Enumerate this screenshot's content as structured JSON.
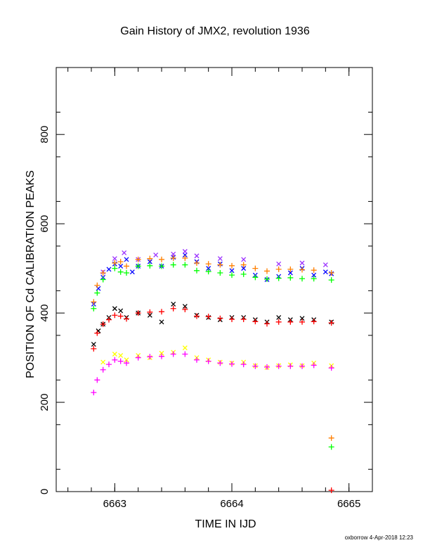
{
  "chart_data": {
    "type": "scatter",
    "title": "Gain History of JMX2, revolution 1936",
    "xlabel": "TIME IN IJD",
    "ylabel": "POSITION OF Cd CALIBRATION PEAKS",
    "xlim": [
      6662.5,
      6665.2
    ],
    "ylim": [
      0,
      950
    ],
    "x_ticks": [
      6663,
      6664,
      6665
    ],
    "x_tick_labels": [
      "6663",
      "6664",
      "6665"
    ],
    "y_ticks": [
      0,
      200,
      400,
      600,
      800
    ],
    "y_tick_labels": [
      "0",
      "200",
      "400",
      "600",
      "800"
    ],
    "grid": false,
    "series": [
      {
        "marker": "x",
        "color": "#0000ff",
        "x": [
          6662.82,
          6662.86,
          6662.9,
          6662.95,
          6663.0,
          6663.05,
          6663.1,
          6663.15,
          6663.2,
          6663.3,
          6663.4,
          6663.5,
          6663.6,
          6663.7,
          6663.8,
          6663.9,
          6664.0,
          6664.1,
          6664.2,
          6664.3,
          6664.4,
          6664.5,
          6664.6,
          6664.7,
          6664.8,
          6664.85
        ],
        "y": [
          420,
          455,
          480,
          498,
          510,
          505,
          520,
          492,
          505,
          515,
          505,
          525,
          530,
          515,
          500,
          510,
          495,
          500,
          485,
          475,
          482,
          490,
          500,
          485,
          492,
          488
        ]
      },
      {
        "marker": "x",
        "color": "#9b30ff",
        "x": [
          6662.9,
          6663.0,
          6663.08,
          6663.2,
          6663.35,
          6663.5,
          6663.6,
          6663.7,
          6663.9,
          6664.1,
          6664.4,
          6664.6,
          6664.8
        ],
        "y": [
          492,
          522,
          535,
          520,
          530,
          532,
          538,
          528,
          522,
          520,
          510,
          512,
          508
        ]
      },
      {
        "marker": "+",
        "color": "#ff7f00",
        "x": [
          6662.82,
          6662.85,
          6662.9,
          6663.0,
          6663.05,
          6663.1,
          6663.2,
          6663.3,
          6663.4,
          6663.5,
          6663.6,
          6663.7,
          6663.8,
          6663.9,
          6664.0,
          6664.1,
          6664.2,
          6664.3,
          6664.4,
          6664.5,
          6664.6,
          6664.7,
          6664.85
        ],
        "y": [
          425,
          462,
          490,
          512,
          515,
          505,
          520,
          522,
          520,
          523,
          523,
          512,
          510,
          508,
          506,
          508,
          500,
          494,
          498,
          498,
          497,
          496,
          490
        ]
      },
      {
        "marker": "+",
        "color": "#00ff00",
        "x": [
          6662.82,
          6662.85,
          6662.9,
          6663.0,
          6663.05,
          6663.1,
          6663.2,
          6663.3,
          6663.4,
          6663.5,
          6663.6,
          6663.7,
          6663.8,
          6663.9,
          6664.0,
          6664.1,
          6664.2,
          6664.3,
          6664.4,
          6664.5,
          6664.6,
          6664.7,
          6664.85
        ],
        "y": [
          410,
          445,
          475,
          500,
          492,
          490,
          505,
          506,
          505,
          508,
          508,
          495,
          493,
          490,
          485,
          487,
          480,
          476,
          478,
          479,
          477,
          477,
          474
        ]
      },
      {
        "marker": "x",
        "color": "#000000",
        "x": [
          6662.82,
          6662.86,
          6662.9,
          6662.95,
          6663.0,
          6663.05,
          6663.1,
          6663.2,
          6663.3,
          6663.4,
          6663.5,
          6663.6,
          6663.7,
          6663.8,
          6663.9,
          6664.0,
          6664.1,
          6664.2,
          6664.3,
          6664.4,
          6664.5,
          6664.6,
          6664.7,
          6664.85
        ],
        "y": [
          330,
          360,
          375,
          390,
          410,
          405,
          390,
          400,
          395,
          380,
          420,
          415,
          395,
          390,
          385,
          390,
          390,
          385,
          380,
          390,
          385,
          388,
          385,
          380
        ]
      },
      {
        "marker": "+",
        "color": "#ff0000",
        "x": [
          6662.82,
          6662.85,
          6662.9,
          6662.95,
          6663.0,
          6663.05,
          6663.1,
          6663.2,
          6663.3,
          6663.4,
          6663.5,
          6663.6,
          6663.7,
          6663.8,
          6663.9,
          6664.0,
          6664.1,
          6664.2,
          6664.3,
          6664.4,
          6664.5,
          6664.6,
          6664.7,
          6664.85
        ],
        "y": [
          320,
          355,
          375,
          385,
          395,
          393,
          387,
          400,
          402,
          403,
          410,
          408,
          393,
          392,
          388,
          386,
          386,
          381,
          376,
          380,
          380,
          380,
          381,
          378
        ]
      },
      {
        "marker": "x",
        "color": "#ffff00",
        "x": [
          6662.9,
          6663.0,
          6663.05,
          6663.1,
          6663.2,
          6663.3,
          6663.4,
          6663.5,
          6663.6,
          6663.7,
          6663.8,
          6663.9,
          6664.0,
          6664.1,
          6664.2,
          6664.3,
          6664.4,
          6664.5,
          6664.6,
          6664.7,
          6664.85
        ],
        "y": [
          290,
          308,
          305,
          295,
          305,
          300,
          310,
          312,
          322,
          300,
          295,
          290,
          288,
          290,
          282,
          278,
          282,
          284,
          282,
          288,
          282
        ]
      },
      {
        "marker": "+",
        "color": "#ff00ff",
        "x": [
          6662.82,
          6662.85,
          6662.9,
          6662.95,
          6663.0,
          6663.05,
          6663.1,
          6663.2,
          6663.3,
          6663.4,
          6663.5,
          6663.6,
          6663.7,
          6663.8,
          6663.9,
          6664.0,
          6664.1,
          6664.2,
          6664.3,
          6664.4,
          6664.5,
          6664.6,
          6664.7,
          6664.85
        ],
        "y": [
          222,
          250,
          273,
          285,
          295,
          292,
          288,
          300,
          302,
          303,
          308,
          308,
          295,
          292,
          288,
          286,
          285,
          281,
          279,
          281,
          281,
          281,
          283,
          277
        ]
      },
      {
        "marker": "+",
        "color": "#ff7f00",
        "x": [
          6664.85
        ],
        "y": [
          120
        ]
      },
      {
        "marker": "+",
        "color": "#00ff00",
        "x": [
          6664.85
        ],
        "y": [
          100
        ]
      },
      {
        "marker": "+",
        "color": "#ff0000",
        "x": [
          6664.85
        ],
        "y": [
          3
        ]
      }
    ]
  },
  "footer": {
    "credit": "oxborrow  4-Apr-2018 12:23"
  }
}
